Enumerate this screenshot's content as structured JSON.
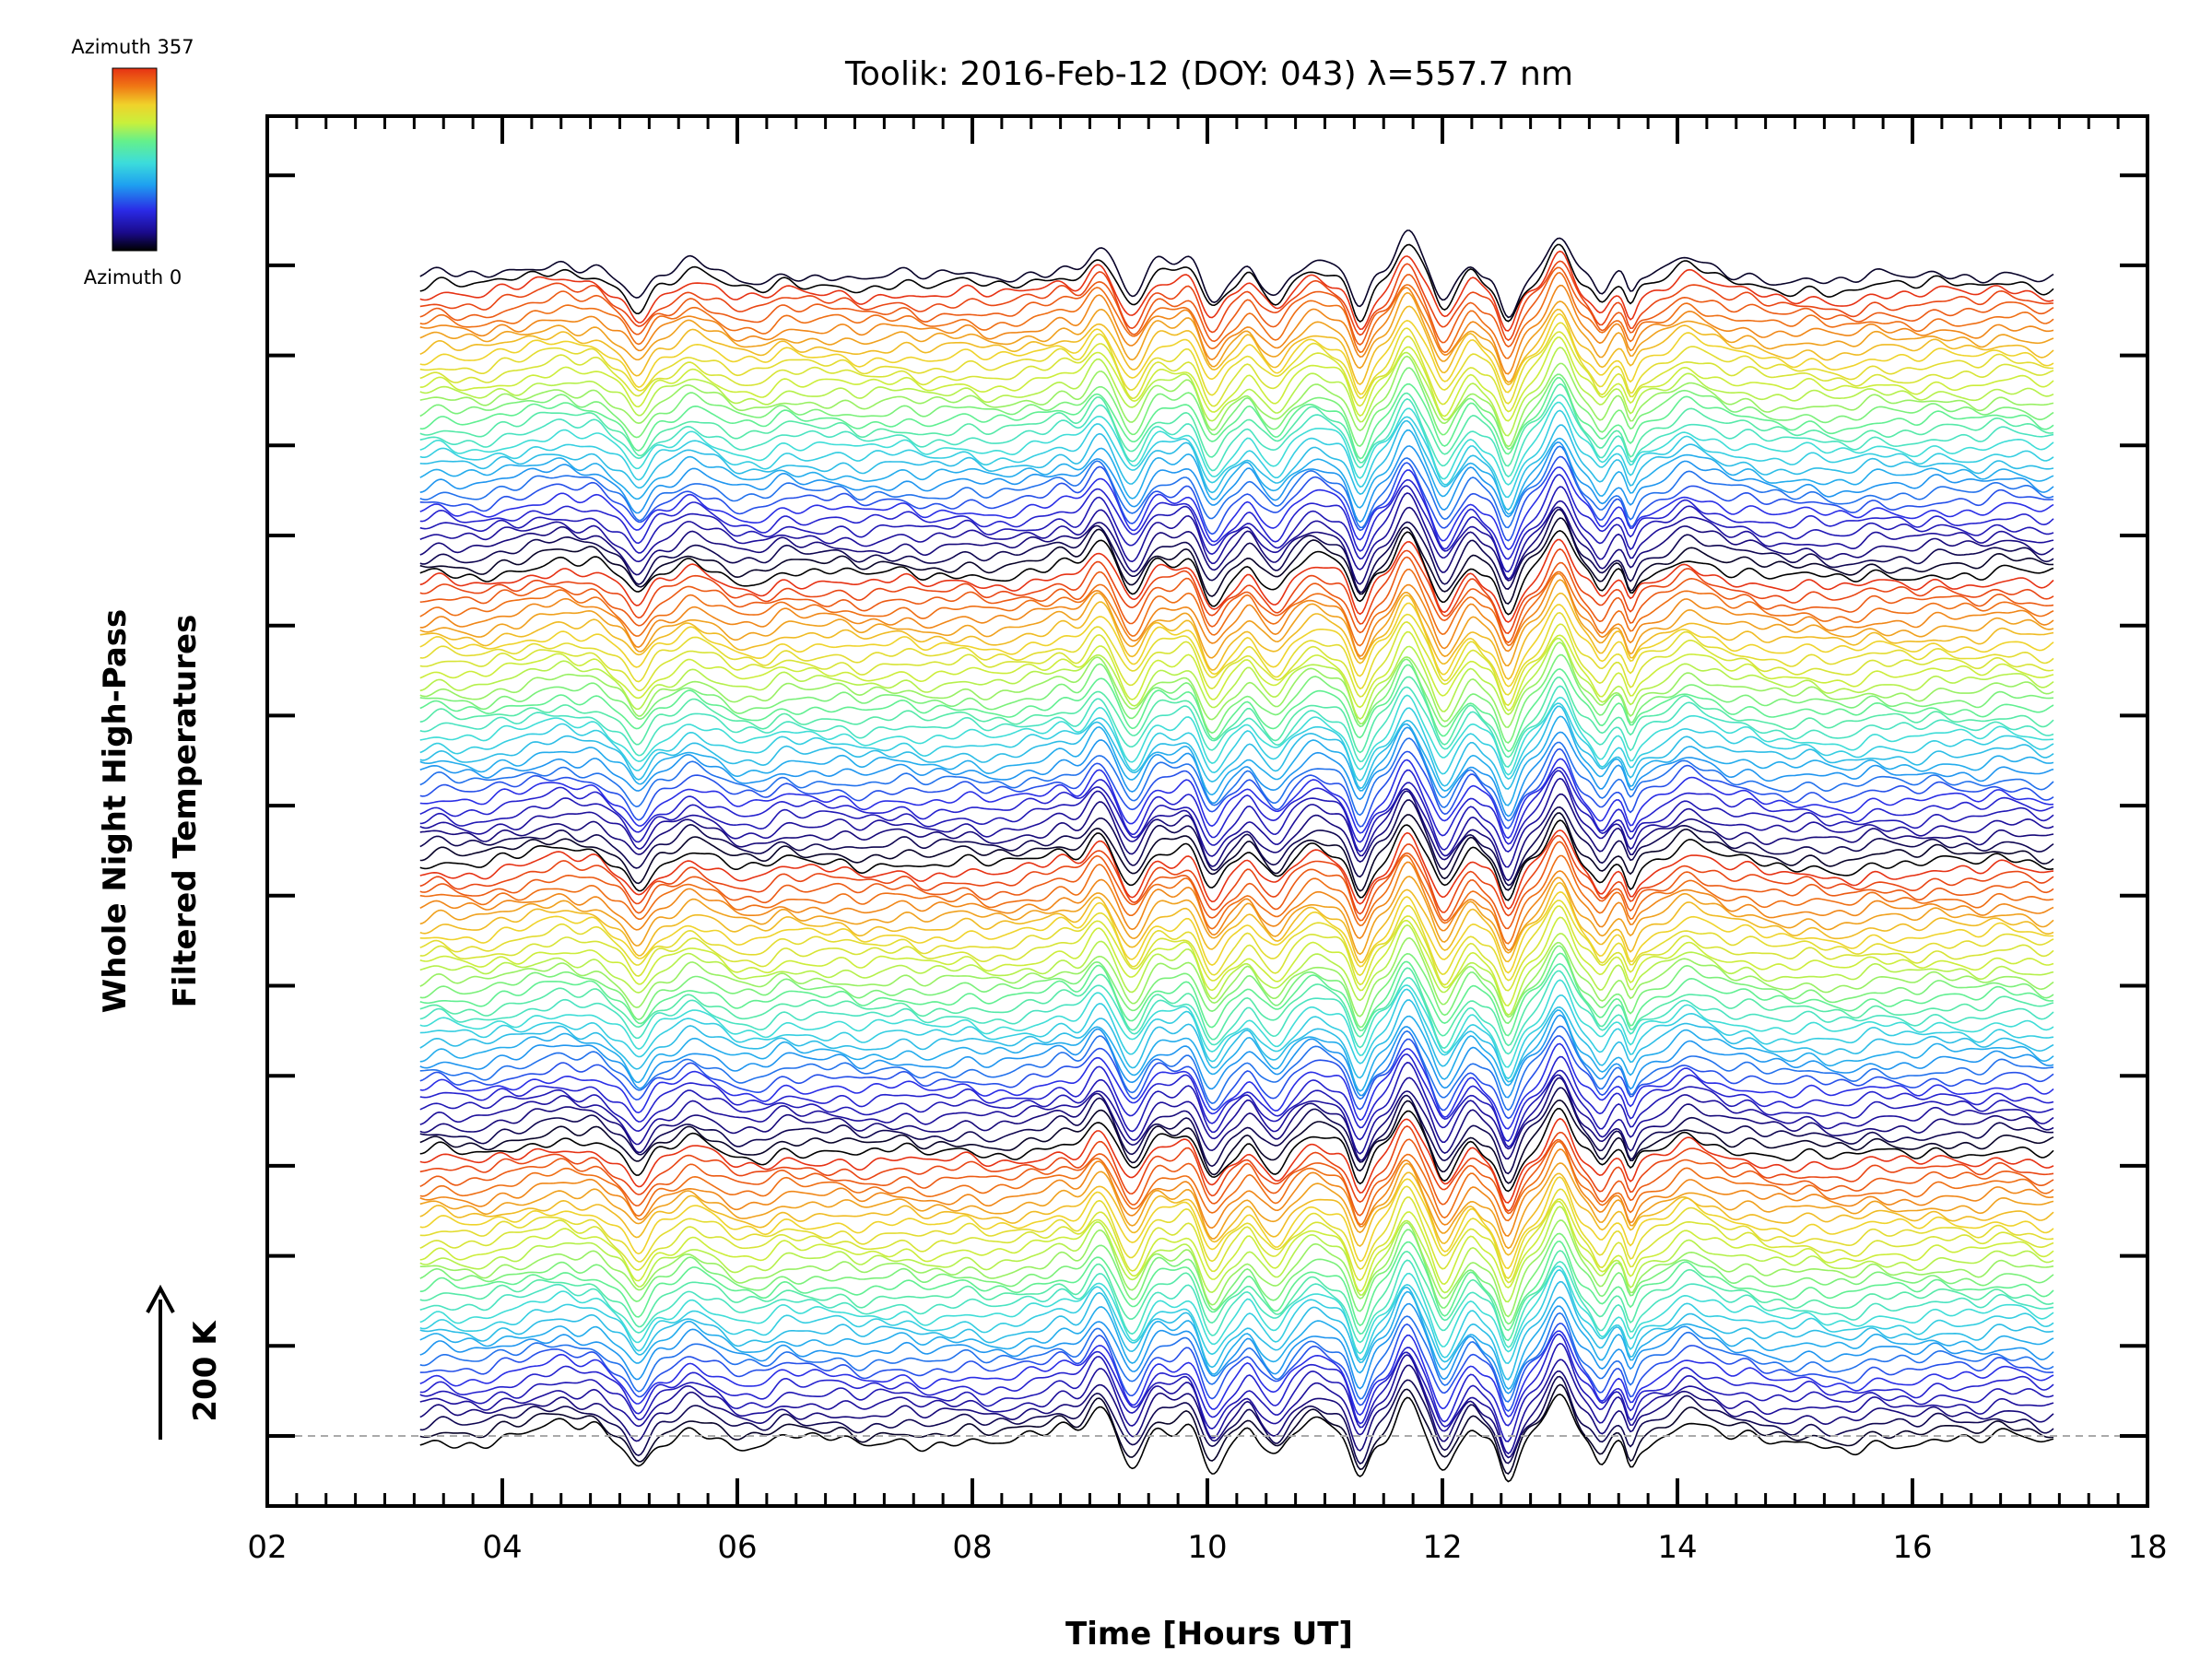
{
  "chart_data": {
    "type": "line",
    "title": "Toolik: 2016-Feb-12 (DOY: 043) λ=557.7 nm",
    "xlabel": "Time [Hours UT]",
    "ylabel_line1": "Whole Night High-Pass",
    "ylabel_line2": "Filtered Temperatures",
    "scale_marker": "200 K",
    "xlim": [
      2,
      18
    ],
    "x_ticks": [
      "02",
      "04",
      "06",
      "08",
      "10",
      "12",
      "14",
      "16",
      "18"
    ],
    "x_tick_values": [
      2,
      4,
      6,
      8,
      10,
      12,
      14,
      16,
      18
    ],
    "data_time_range": [
      3.3,
      17.2
    ],
    "colorbar": {
      "top_label": "Azimuth 357",
      "bottom_label": "Azimuth 0",
      "colormap": [
        "#000000",
        "#1a0a8c",
        "#2a2ae6",
        "#1ea0f0",
        "#3cdcdc",
        "#64f08c",
        "#c8f03c",
        "#f0d22a",
        "#f07814",
        "#e63214"
      ]
    },
    "series_count": 130,
    "series_description": "Stacked high-pass filtered temperature traces, one per azimuth, vertically offset; shared temporal features include dips near 05.1, 10.0, 11.3, 12.5 and 13.6 UT and peaks near 09.1, 11.7 and 13.0 UT",
    "baseline": "dashed gray line at the first trace offset",
    "grid": false
  }
}
